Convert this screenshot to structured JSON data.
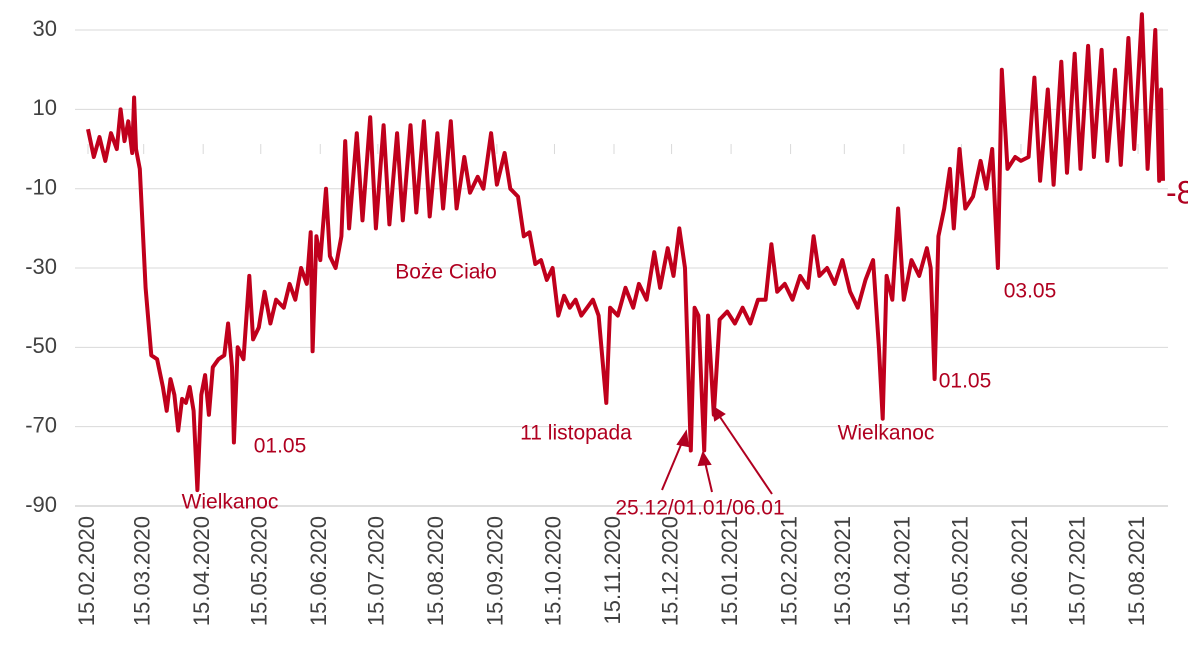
{
  "chart_data": {
    "type": "line",
    "x": [
      "15.02.2020",
      "18.02.2020",
      "21.02.2020",
      "24.02.2020",
      "27.02.2020",
      "01.03.2020",
      "03.03.2020",
      "05.03.2020",
      "07.03.2020",
      "09.03.2020",
      "10.03.2020",
      "11.03.2020",
      "13.03.2020",
      "16.03.2020",
      "19.03.2020",
      "22.03.2020",
      "25.03.2020",
      "27.03.2020",
      "29.03.2020",
      "31.03.2020",
      "02.04.2020",
      "04.04.2020",
      "06.04.2020",
      "08.04.2020",
      "10.04.2020",
      "12.04.2020",
      "14.04.2020",
      "16.04.2020",
      "18.04.2020",
      "20.04.2020",
      "23.04.2020",
      "26.04.2020",
      "28.04.2020",
      "30.04.2020",
      "01.05.2020",
      "03.05.2020",
      "06.05.2020",
      "09.05.2020",
      "11.05.2020",
      "14.05.2020",
      "17.05.2020",
      "20.05.2020",
      "23.05.2020",
      "27.05.2020",
      "30.05.2020",
      "02.06.2020",
      "05.06.2020",
      "08.06.2020",
      "10.06.2020",
      "11.06.2020",
      "13.06.2020",
      "15.06.2020",
      "18.06.2020",
      "20.06.2020",
      "23.06.2020",
      "26.06.2020",
      "28.06.2020",
      "30.06.2020",
      "04.07.2020",
      "07.07.2020",
      "11.07.2020",
      "14.07.2020",
      "18.07.2020",
      "21.07.2020",
      "25.07.2020",
      "28.07.2020",
      "01.08.2020",
      "04.08.2020",
      "08.08.2020",
      "11.08.2020",
      "15.08.2020",
      "18.08.2020",
      "22.08.2020",
      "25.08.2020",
      "29.08.2020",
      "01.09.2020",
      "05.09.2020",
      "08.09.2020",
      "12.09.2020",
      "15.09.2020",
      "19.09.2020",
      "22.09.2020",
      "26.09.2020",
      "29.09.2020",
      "02.10.2020",
      "05.10.2020",
      "08.10.2020",
      "11.10.2020",
      "14.10.2020",
      "17.10.2020",
      "20.10.2020",
      "23.10.2020",
      "26.10.2020",
      "29.10.2020",
      "01.11.2020",
      "04.11.2020",
      "07.11.2020",
      "11.11.2020",
      "13.11.2020",
      "17.11.2020",
      "21.11.2020",
      "25.11.2020",
      "28.11.2020",
      "02.12.2020",
      "06.12.2020",
      "09.12.2020",
      "13.12.2020",
      "16.12.2020",
      "19.12.2020",
      "22.12.2020",
      "25.12.2020",
      "27.12.2020",
      "29.12.2020",
      "01.01.2021",
      "03.01.2021",
      "06.01.2021",
      "09.01.2021",
      "13.01.2021",
      "17.01.2021",
      "21.01.2021",
      "25.01.2021",
      "29.01.2021",
      "02.02.2021",
      "05.02.2021",
      "08.02.2021",
      "12.02.2021",
      "16.02.2021",
      "20.02.2021",
      "24.02.2021",
      "27.02.2021",
      "02.03.2021",
      "06.03.2021",
      "10.03.2021",
      "14.03.2021",
      "18.03.2021",
      "22.03.2021",
      "26.03.2021",
      "30.03.2021",
      "02.04.2021",
      "04.04.2021",
      "06.04.2021",
      "09.04.2021",
      "12.04.2021",
      "15.04.2021",
      "19.04.2021",
      "23.04.2021",
      "27.04.2021",
      "29.04.2021",
      "01.05.2021",
      "03.05.2021",
      "06.05.2021",
      "09.05.2021",
      "11.05.2021",
      "14.05.2021",
      "17.05.2021",
      "21.05.2021",
      "25.05.2021",
      "28.05.2021",
      "31.05.2021",
      "03.06.2021",
      "05.06.2021",
      "08.06.2021",
      "12.06.2021",
      "15.06.2021",
      "19.06.2021",
      "22.06.2021",
      "25.06.2021",
      "29.06.2021",
      "02.07.2021",
      "06.07.2021",
      "09.07.2021",
      "13.07.2021",
      "16.07.2021",
      "20.07.2021",
      "23.07.2021",
      "27.07.2021",
      "30.07.2021",
      "03.08.2021",
      "06.08.2021",
      "10.08.2021",
      "13.08.2021",
      "17.08.2021",
      "20.08.2021",
      "24.08.2021",
      "26.08.2021",
      "27.08.2021",
      "28.08.2021"
    ],
    "series": [
      {
        "color": "#c0001c",
        "values": [
          5,
          -2,
          3,
          -3,
          4,
          0,
          10,
          2,
          7,
          -1,
          13,
          0,
          -5,
          -35,
          -52,
          -53,
          -60,
          -66,
          -58,
          -62,
          -71,
          -63,
          -64,
          -60,
          -66,
          -86,
          -62,
          -57,
          -67,
          -55,
          -53,
          -52,
          -44,
          -55,
          -74,
          -50,
          -53,
          -32,
          -48,
          -45,
          -36,
          -44,
          -38,
          -40,
          -34,
          -38,
          -30,
          -34,
          -21,
          -51,
          -22,
          -28,
          -10,
          -27,
          -30,
          -22,
          2,
          -20,
          4,
          -18,
          8,
          -20,
          6,
          -19,
          4,
          -18,
          6,
          -16,
          7,
          -17,
          4,
          -15,
          7,
          -15,
          -2,
          -11,
          -7,
          -10,
          4,
          -9,
          -1,
          -10,
          -12,
          -22,
          -21,
          -29,
          -28,
          -33,
          -30,
          -42,
          -37,
          -40,
          -38,
          -42,
          -40,
          -38,
          -42,
          -64,
          -40,
          -42,
          -35,
          -40,
          -34,
          -38,
          -26,
          -35,
          -25,
          -32,
          -20,
          -30,
          -76,
          -40,
          -42,
          -76,
          -42,
          -67,
          -43,
          -41,
          -44,
          -40,
          -44,
          -38,
          -38,
          -24,
          -36,
          -34,
          -38,
          -32,
          -35,
          -22,
          -32,
          -30,
          -34,
          -28,
          -36,
          -40,
          -33,
          -28,
          -50,
          -68,
          -32,
          -38,
          -15,
          -38,
          -28,
          -32,
          -25,
          -30,
          -58,
          -22,
          -15,
          -5,
          -20,
          0,
          -15,
          -12,
          -3,
          -10,
          0,
          -30,
          20,
          -5,
          -2,
          -3,
          -2,
          18,
          -8,
          15,
          -9,
          22,
          -6,
          24,
          -5,
          26,
          -2,
          25,
          -3,
          20,
          -4,
          28,
          0,
          34,
          -5,
          30,
          -8,
          15,
          -8
        ]
      }
    ],
    "ylim": [
      -90,
      35
    ],
    "yticks": [
      -90,
      -70,
      -50,
      -30,
      -10,
      10,
      30
    ],
    "xlim": [
      "15.02.2020",
      "28.08.2021"
    ],
    "xticks": [
      "15.02.2020",
      "15.03.2020",
      "15.04.2020",
      "15.05.2020",
      "15.06.2020",
      "15.07.2020",
      "15.08.2020",
      "15.09.2020",
      "15.10.2020",
      "15.11.2020",
      "15.12.2020",
      "15.01.2021",
      "15.02.2021",
      "15.03.2021",
      "15.04.2021",
      "15.05.2021",
      "15.06.2021",
      "15.07.2021",
      "15.08.2021"
    ],
    "grid": true,
    "annotations": [
      "Wielkanoc",
      "01.05",
      "Boże Ciało",
      "11 listopada",
      "25.12/01.01/06.01",
      "Wielkanoc",
      "01.05",
      "03.05"
    ]
  }
}
